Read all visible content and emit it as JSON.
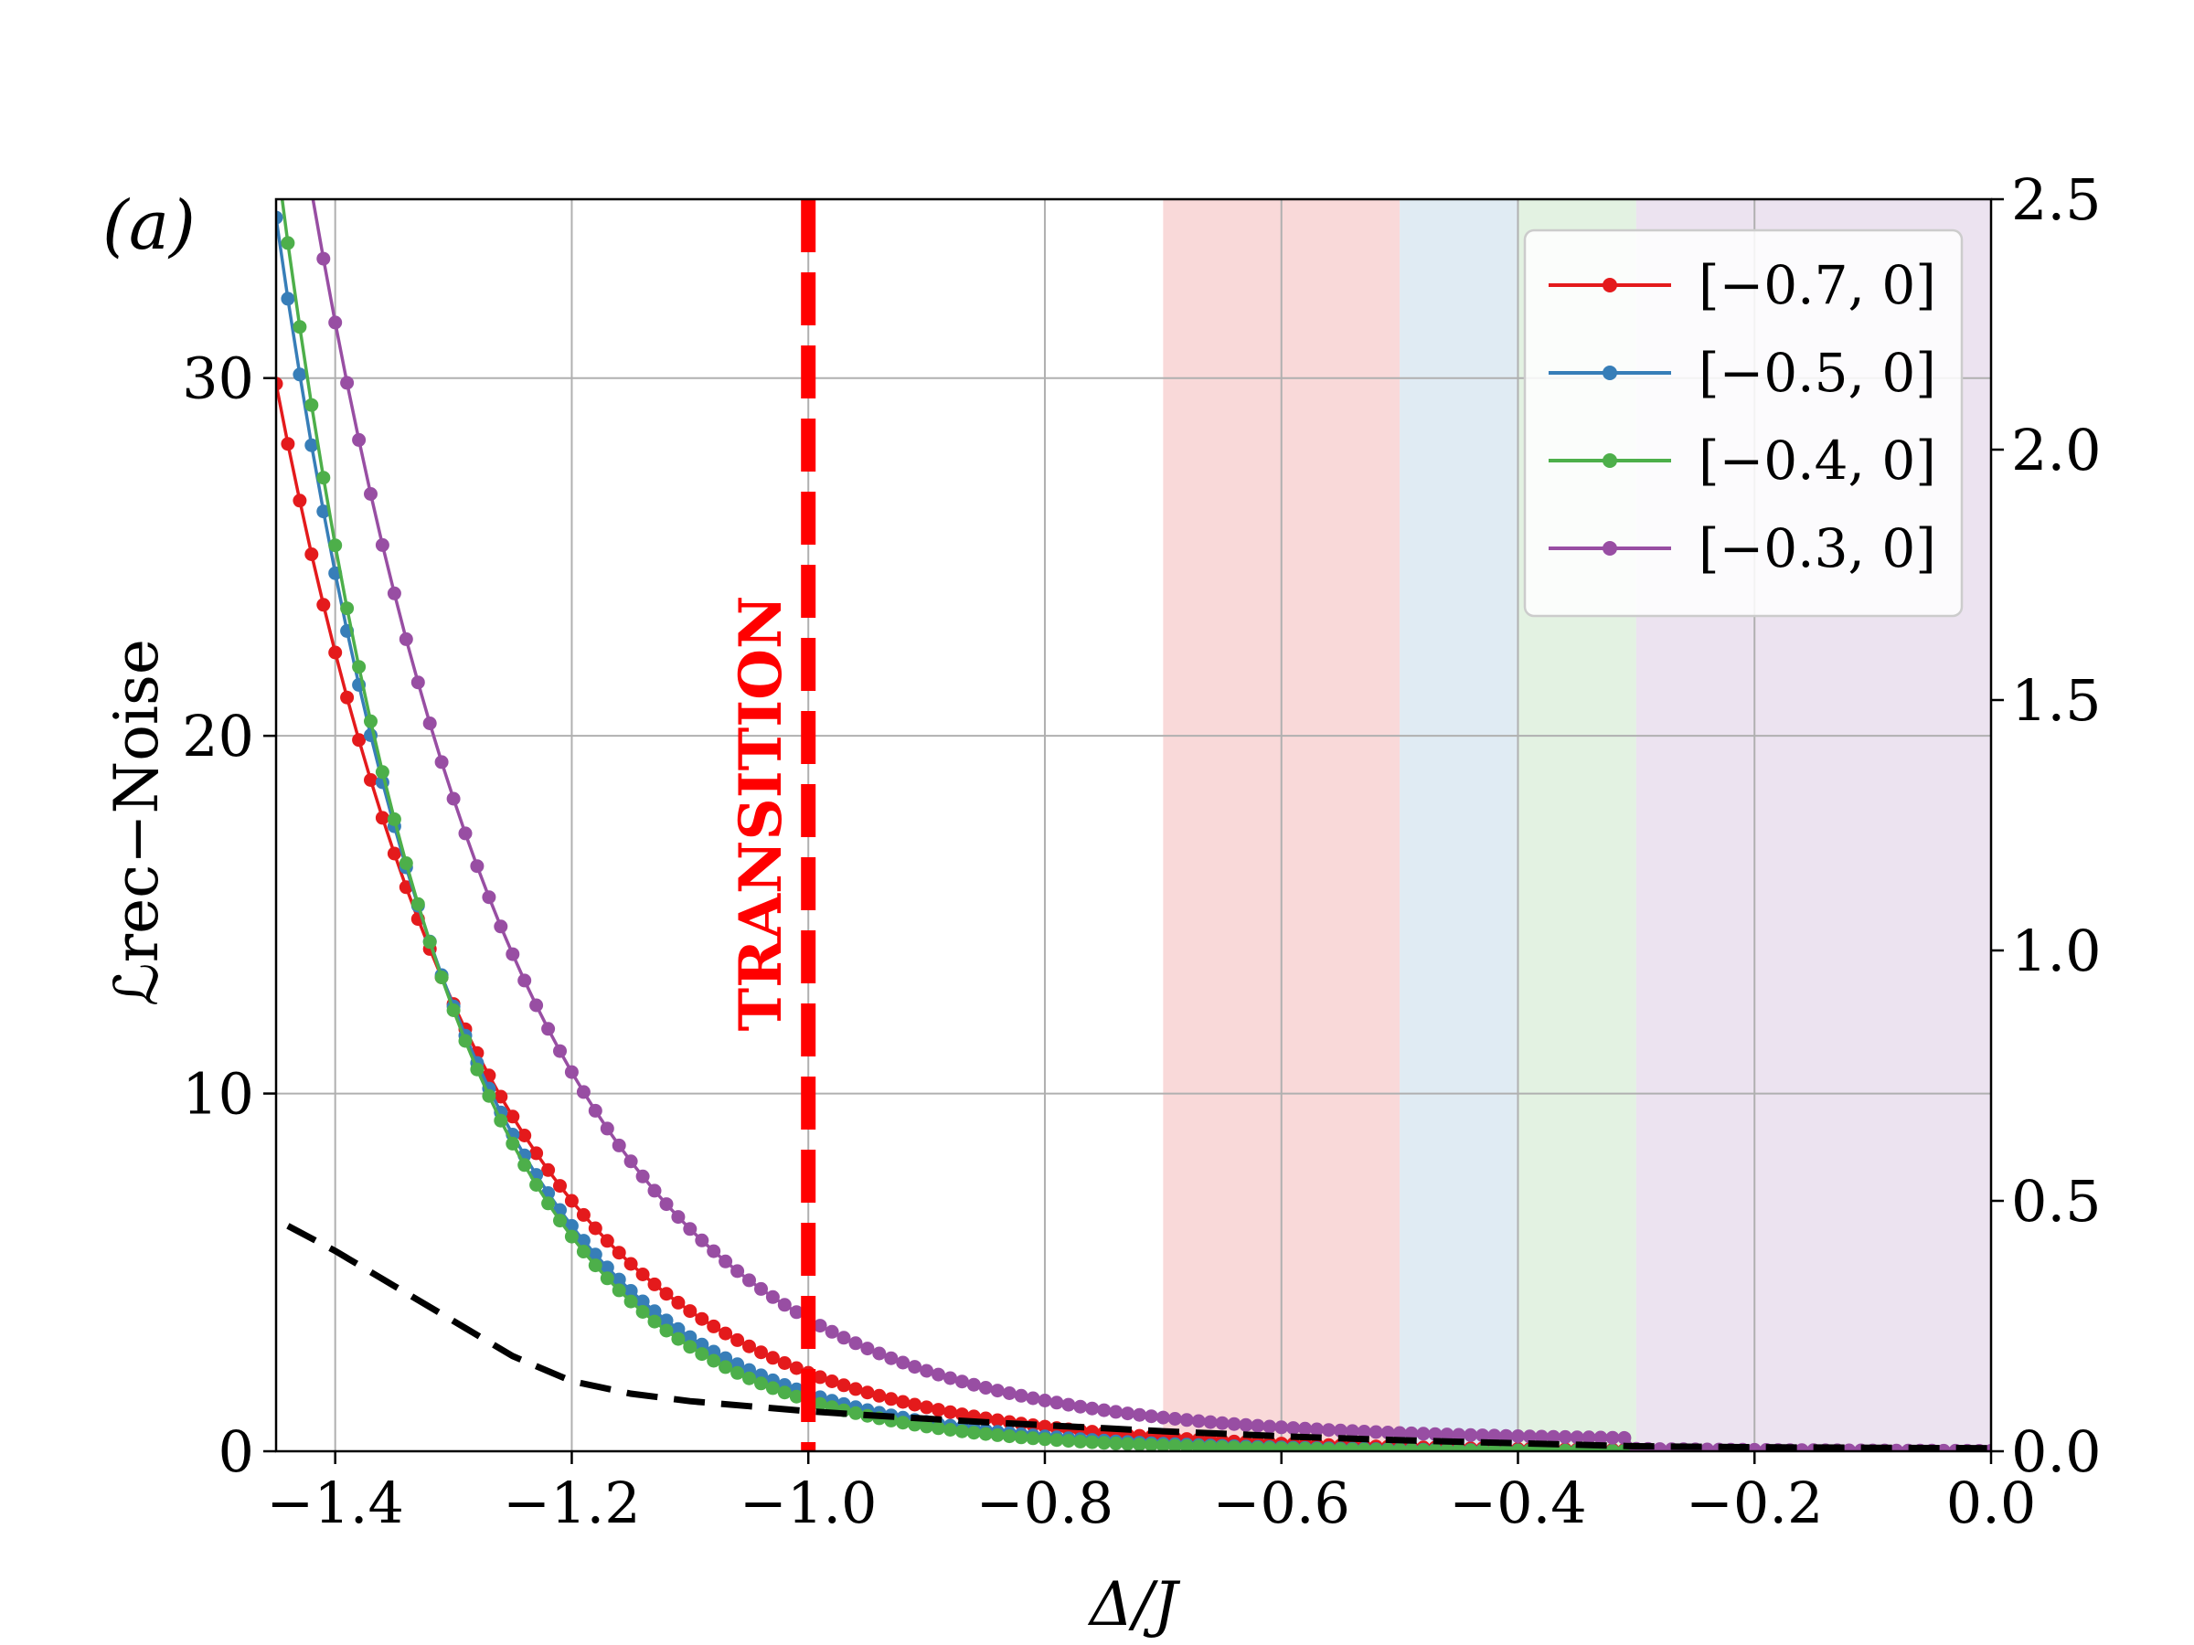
{
  "chart_data": {
    "type": "line",
    "panel_label": "(a)",
    "xlabel": "Δ/J",
    "ylabel": "ℒrec−Noise",
    "xlim": [
      -1.45,
      0.0
    ],
    "ylim": [
      0,
      35
    ],
    "y2lim": [
      0.0,
      2.5
    ],
    "grid": true,
    "legend_position": "top-right",
    "x_ticks": [
      -1.4,
      -1.2,
      -1.0,
      -0.8,
      -0.6,
      -0.4,
      -0.2,
      0.0
    ],
    "x_tick_labels": [
      "−1.4",
      "−1.2",
      "−1.0",
      "−0.8",
      "−0.6",
      "−0.4",
      "−0.2",
      "0.0"
    ],
    "y_ticks": [
      0,
      10,
      20,
      30
    ],
    "y_tick_labels": [
      "0",
      "10",
      "20",
      "30"
    ],
    "y2_ticks": [
      0.0,
      0.5,
      1.0,
      1.5,
      2.0,
      2.5
    ],
    "y2_tick_labels": [
      "0.0",
      "0.5",
      "1.0",
      "1.5",
      "2.0",
      "2.5"
    ],
    "transition": {
      "x": -1.0,
      "label": "TRANSITION",
      "color": "#ff0000"
    },
    "shaded_regions": [
      {
        "x0": -0.7,
        "x1": -0.5,
        "color": "#f6c9c9"
      },
      {
        "x0": -0.5,
        "x1": -0.4,
        "color": "#d3e2ee"
      },
      {
        "x0": -0.4,
        "x1": -0.3,
        "color": "#d7ecd6"
      },
      {
        "x0": -0.3,
        "x1": 0.0,
        "color": "#e4d7ea"
      }
    ],
    "series": [
      {
        "name": "[−0.7, 0]",
        "color": "#e41a1c",
        "x0": -1.2,
        "v0": 7.0,
        "k": 5.8,
        "c": 0.0
      },
      {
        "name": "[−0.5, 0]",
        "color": "#377eb8",
        "x0": -1.2,
        "v0": 6.3,
        "k": 6.8,
        "c": 0.0
      },
      {
        "name": "[−0.4, 0]",
        "color": "#4daf4a",
        "x0": -1.2,
        "v0": 6.0,
        "k": 7.2,
        "c": 0.0
      },
      {
        "name": "[−0.3, 0]",
        "color": "#984ea3",
        "x0": -1.2,
        "v0": 10.3,
        "k": 5.55,
        "c": 0.3
      }
    ],
    "dashed_curve": {
      "color": "#000000",
      "axis": "right",
      "x": [
        -1.44,
        -1.4,
        -1.35,
        -1.3,
        -1.25,
        -1.2,
        -1.15,
        -1.1,
        -1.05,
        -1.0,
        -0.95,
        -0.9,
        -0.85,
        -0.8,
        -0.75,
        -0.7,
        -0.65,
        -0.6,
        -0.55,
        -0.5,
        -0.45,
        -0.4,
        -0.35,
        -0.3,
        -0.2,
        -0.1,
        0.0
      ],
      "y": [
        0.45,
        0.4,
        0.33,
        0.26,
        0.19,
        0.14,
        0.115,
        0.1,
        0.09,
        0.08,
        0.072,
        0.065,
        0.058,
        0.052,
        0.046,
        0.04,
        0.035,
        0.03,
        0.026,
        0.022,
        0.019,
        0.016,
        0.013,
        0.01,
        0.008,
        0.007,
        0.006
      ]
    }
  }
}
